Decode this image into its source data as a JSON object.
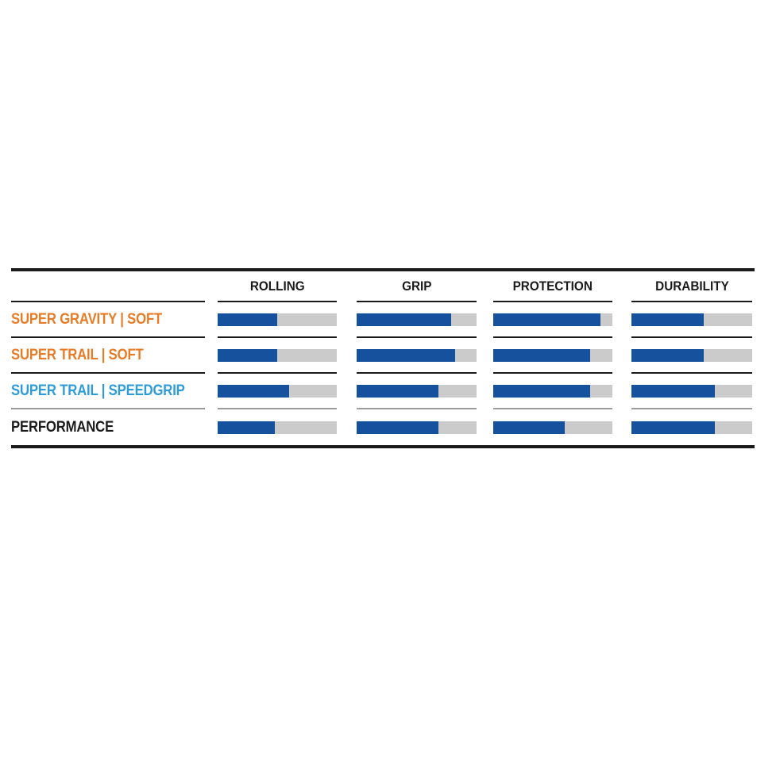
{
  "chart_data": {
    "type": "bar",
    "orientation": "horizontal",
    "title": "",
    "categories": [
      "SUPER GRAVITY | SOFT",
      "SUPER TRAIL | SOFT",
      "SUPER TRAIL | SPEEDGRIP",
      "PERFORMANCE"
    ],
    "category_colors": [
      "#E87B25",
      "#E87B25",
      "#2E9CD7",
      "#1A1A1A"
    ],
    "series": [
      {
        "name": "ROLLING",
        "values": [
          50,
          50,
          60,
          48
        ]
      },
      {
        "name": "GRIP",
        "values": [
          79,
          82,
          68,
          68
        ]
      },
      {
        "name": "PROTECTION",
        "values": [
          90,
          81,
          81,
          60
        ]
      },
      {
        "name": "DURABILITY",
        "values": [
          60,
          60,
          69,
          69
        ]
      }
    ],
    "value_range": [
      0,
      100
    ],
    "grid": false,
    "legend_position": "none"
  },
  "colors": {
    "bar_fill": "#16519E",
    "bar_track": "#CBCBCB",
    "rule": "#1A1A1A",
    "separator_dark": "#1A1A1A",
    "separator_light": "#9B9B9B",
    "header_text": "#1A1A1A",
    "background": "#FFFFFF"
  }
}
